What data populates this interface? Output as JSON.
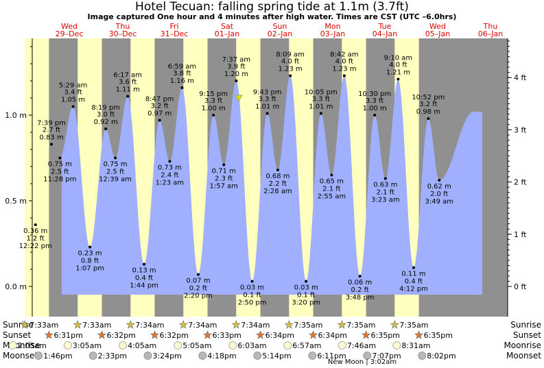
{
  "title": "Hotel Tecuan: falling  spring tide at 1.1m (3.7ft)",
  "subtitle": "Image captured One hour and 4 minutes after high water. Times are CST (UTC –6.0hrs)",
  "colors": {
    "water": "#a0b0ff",
    "night": "#909090",
    "day": "#ffffc0",
    "day_label": "#dd0000",
    "current_marker": "#e0e000"
  },
  "chart_data": {
    "type": "area",
    "title": "Hotel Tecuan: falling  spring tide at 1.1m (3.7ft)",
    "ylabel_left": "m",
    "ylabel_right": "ft",
    "ylim_m": [
      -0.1,
      1.45
    ],
    "y_ticks_m": [
      "0.0 m",
      "0.5 m",
      "1.0 m"
    ],
    "y_ticks_ft": [
      "0 ft",
      "1 ft",
      "2 ft",
      "3 ft",
      "4 ft"
    ],
    "x_range_days": [
      "2021-12-29",
      "2022-01-06"
    ],
    "days": [
      {
        "dow": "Wed",
        "date": "29–Dec"
      },
      {
        "dow": "Thu",
        "date": "30–Dec"
      },
      {
        "dow": "Fri",
        "date": "31–Dec"
      },
      {
        "dow": "Sat",
        "date": "01–Jan"
      },
      {
        "dow": "Sun",
        "date": "02–Jan"
      },
      {
        "dow": "Mon",
        "date": "03–Jan"
      },
      {
        "dow": "Tue",
        "date": "04–Jan"
      },
      {
        "dow": "Wed",
        "date": "05–Jan"
      },
      {
        "dow": "Thu",
        "date": "06–Jan"
      }
    ],
    "daylight": [
      {
        "rise": "2021-12-29 07:33",
        "set": "2021-12-29 18:31"
      },
      {
        "rise": "2021-12-30 07:33",
        "set": "2021-12-30 18:32"
      },
      {
        "rise": "2021-12-31 07:34",
        "set": "2021-12-31 18:32"
      },
      {
        "rise": "2022-01-01 07:34",
        "set": "2022-01-01 18:33"
      },
      {
        "rise": "2022-01-02 07:34",
        "set": "2022-01-02 18:34"
      },
      {
        "rise": "2022-01-03 07:35",
        "set": "2022-01-03 18:34"
      },
      {
        "rise": "2022-01-04 07:35",
        "set": "2022-01-04 18:35"
      },
      {
        "rise": "2022-01-05 07:35",
        "set": "2022-01-05 18:35"
      }
    ],
    "tides": [
      {
        "time": "2021-12-29 12:22",
        "label": "12:22 pm",
        "m": 0.36,
        "m_label": "0.36 m",
        "ft_label": "1.2 ft",
        "type": "low"
      },
      {
        "time": "2021-12-29 19:39",
        "label": "7:39 pm",
        "m": 0.83,
        "m_label": "0.83 m",
        "ft_label": "2.7 ft",
        "type": "high"
      },
      {
        "time": "2021-12-29 23:28",
        "label": "11:28 pm",
        "m": 0.75,
        "m_label": "0.75 m",
        "ft_label": "2.5 ft",
        "type": "low"
      },
      {
        "time": "2021-12-30 05:29",
        "label": "5:29 am",
        "m": 1.05,
        "m_label": "1.05 m",
        "ft_label": "3.4 ft",
        "type": "high"
      },
      {
        "time": "2021-12-30 13:07",
        "label": "1:07 pm",
        "m": 0.23,
        "m_label": "0.23 m",
        "ft_label": "0.8 ft",
        "type": "low"
      },
      {
        "time": "2021-12-30 20:19",
        "label": "8:19 pm",
        "m": 0.92,
        "m_label": "0.92 m",
        "ft_label": "3.0 ft",
        "type": "high"
      },
      {
        "time": "2021-12-31 00:39",
        "label": "12:39 am",
        "m": 0.75,
        "m_label": "0.75 m",
        "ft_label": "2.5 ft",
        "type": "low"
      },
      {
        "time": "2021-12-31 06:17",
        "label": "6:17 am",
        "m": 1.11,
        "m_label": "1.11 m",
        "ft_label": "3.6 ft",
        "type": "high"
      },
      {
        "time": "2021-12-31 13:44",
        "label": "1:44 pm",
        "m": 0.13,
        "m_label": "0.13 m",
        "ft_label": "0.4 ft",
        "type": "low"
      },
      {
        "time": "2021-12-31 20:47",
        "label": "8:47 pm",
        "m": 0.97,
        "m_label": "0.97 m",
        "ft_label": "3.2 ft",
        "type": "high"
      },
      {
        "time": "2022-01-01 01:23",
        "label": "1:23 am",
        "m": 0.73,
        "m_label": "0.73 m",
        "ft_label": "2.4 ft",
        "type": "low"
      },
      {
        "time": "2022-01-01 06:59",
        "label": "6:59 am",
        "m": 1.16,
        "m_label": "1.16 m",
        "ft_label": "3.8 ft",
        "type": "high"
      },
      {
        "time": "2022-01-01 14:20",
        "label": "2:20 pm",
        "m": 0.07,
        "m_label": "0.07 m",
        "ft_label": "0.2 ft",
        "type": "low"
      },
      {
        "time": "2022-01-01 21:15",
        "label": "9:15 pm",
        "m": 1.0,
        "m_label": "1.00 m",
        "ft_label": "3.3 ft",
        "type": "high"
      },
      {
        "time": "2022-01-02 01:57",
        "label": "1:57 am",
        "m": 0.71,
        "m_label": "0.71 m",
        "ft_label": "2.3 ft",
        "type": "low"
      },
      {
        "time": "2022-01-02 07:37",
        "label": "7:37 am",
        "m": 1.2,
        "m_label": "1.20 m",
        "ft_label": "3.9 ft",
        "type": "high"
      },
      {
        "time": "2022-01-02 14:50",
        "label": "2:50 pm",
        "m": 0.03,
        "m_label": "0.03 m",
        "ft_label": "0.1 ft",
        "type": "low"
      },
      {
        "time": "2022-01-02 21:43",
        "label": "9:43 pm",
        "m": 1.01,
        "m_label": "1.01 m",
        "ft_label": "3.3 ft",
        "type": "high"
      },
      {
        "time": "2022-01-03 02:28",
        "label": "2:28 am",
        "m": 0.68,
        "m_label": "0.68 m",
        "ft_label": "2.2 ft",
        "type": "low"
      },
      {
        "time": "2022-01-03 08:09",
        "label": "8:09 am",
        "m": 1.23,
        "m_label": "1.23 m",
        "ft_label": "4.0 ft",
        "type": "high"
      },
      {
        "time": "2022-01-03 15:20",
        "label": "3:20 pm",
        "m": 0.03,
        "m_label": "0.03 m",
        "ft_label": "0.1 ft",
        "type": "low"
      },
      {
        "time": "2022-01-03 22:05",
        "label": "10:05 pm",
        "m": 1.01,
        "m_label": "1.01 m",
        "ft_label": "3.3 ft",
        "type": "high"
      },
      {
        "time": "2022-01-04 02:55",
        "label": "2:55 am",
        "m": 0.65,
        "m_label": "0.65 m",
        "ft_label": "2.1 ft",
        "type": "low"
      },
      {
        "time": "2022-01-04 08:42",
        "label": "8:42 am",
        "m": 1.23,
        "m_label": "1.23 m",
        "ft_label": "4.0 ft",
        "type": "high"
      },
      {
        "time": "2022-01-04 15:48",
        "label": "3:48 pm",
        "m": 0.06,
        "m_label": "0.06 m",
        "ft_label": "0.2 ft",
        "type": "low"
      },
      {
        "time": "2022-01-04 22:30",
        "label": "10:30 pm",
        "m": 1.0,
        "m_label": "1.00 m",
        "ft_label": "3.3 ft",
        "type": "high"
      },
      {
        "time": "2022-01-05 03:23",
        "label": "3:23 am",
        "m": 0.63,
        "m_label": "0.63 m",
        "ft_label": "2.1 ft",
        "type": "low"
      },
      {
        "time": "2022-01-05 09:10",
        "label": "9:10 am",
        "m": 1.21,
        "m_label": "1.21 m",
        "ft_label": "4.0 ft",
        "type": "high"
      },
      {
        "time": "2022-01-05 16:12",
        "label": "4:12 pm",
        "m": 0.11,
        "m_label": "0.11 m",
        "ft_label": "0.4 ft",
        "type": "low"
      },
      {
        "time": "2022-01-05 22:52",
        "label": "10:52 pm",
        "m": 0.98,
        "m_label": "0.98 m",
        "ft_label": "3.2 ft",
        "type": "high"
      },
      {
        "time": "2022-01-06 03:49",
        "label": "3:49 am",
        "m": 0.62,
        "m_label": "0.62 m",
        "ft_label": "2.0 ft",
        "type": "low"
      }
    ],
    "current": {
      "time": "2022-01-02 08:41",
      "m": 1.1
    }
  },
  "rows": {
    "labels": [
      "Sunrise",
      "Sunset",
      "Moonrise",
      "Moonset"
    ],
    "sunrise": [
      "7:33am",
      "7:33am",
      "7:34am",
      "7:34am",
      "7:34am",
      "7:35am",
      "7:35am",
      "7:35am"
    ],
    "sunset": [
      "6:31pm",
      "6:32pm",
      "6:32pm",
      "6:33pm",
      "6:34pm",
      "6:34pm",
      "6:35pm",
      "6:35pm"
    ],
    "moonrise": [
      {
        "time": "2021-12-29 02:05",
        "label": "2:05am"
      },
      {
        "time": "2021-12-30 03:05",
        "label": "3:05am"
      },
      {
        "time": "2021-12-31 04:05",
        "label": "4:05am"
      },
      {
        "time": "2022-01-01 05:05",
        "label": "5:05am"
      },
      {
        "time": "2022-01-02 06:03",
        "label": "6:03am"
      },
      {
        "time": "2022-01-03 06:57",
        "label": "6:57am"
      },
      {
        "time": "2022-01-04 07:46",
        "label": "7:46am"
      },
      {
        "time": "2022-01-05 08:31",
        "label": "8:31am"
      }
    ],
    "moonset": [
      {
        "time": "2021-12-29 13:46",
        "label": "1:46pm"
      },
      {
        "time": "2021-12-30 14:33",
        "label": "2:33pm"
      },
      {
        "time": "2021-12-31 15:24",
        "label": "3:24pm"
      },
      {
        "time": "2022-01-01 16:18",
        "label": "4:18pm"
      },
      {
        "time": "2022-01-02 17:14",
        "label": "5:14pm"
      },
      {
        "time": "2022-01-03 18:11",
        "label": "6:11pm"
      },
      {
        "time": "2022-01-04 19:07",
        "label": "7:07pm"
      },
      {
        "time": "2022-01-05 20:02",
        "label": "8:02pm"
      }
    ],
    "new_moon_note": "New Moon | 3:02am"
  }
}
